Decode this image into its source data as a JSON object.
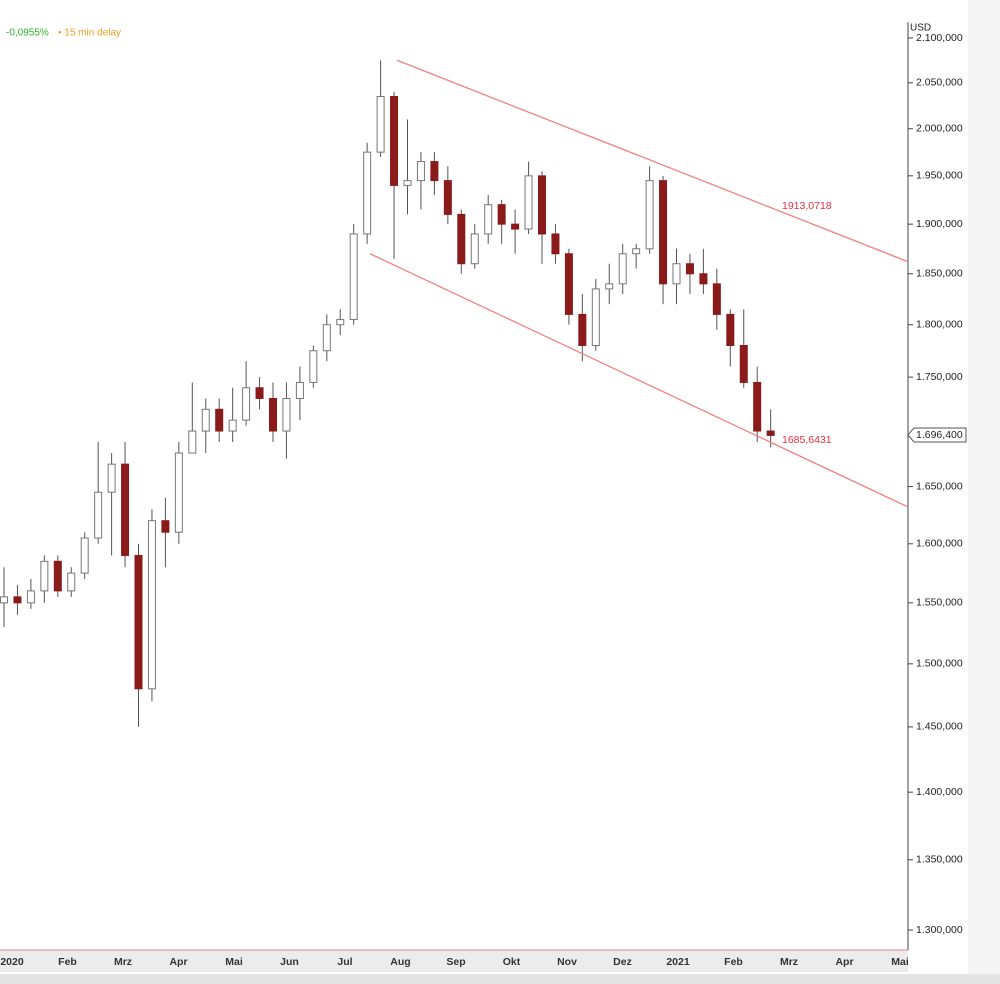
{
  "chart_data": {
    "type": "candlestick",
    "status": "-0,0955%",
    "delay": "• 15 min delay",
    "y_axis_label": "USD",
    "log": true,
    "up_color": "#ffffff",
    "down_color": "#8b1a1a",
    "trend_color": "#f08080",
    "ylim": [
      1300,
      2100
    ],
    "yticks": [
      {
        "value": 2100,
        "label": "2.100,000"
      },
      {
        "value": 2050,
        "label": "2.050,000"
      },
      {
        "value": 2000,
        "label": "2.000,000"
      },
      {
        "value": 1950,
        "label": "1.950,000"
      },
      {
        "value": 1900,
        "label": "1.900,000"
      },
      {
        "value": 1850,
        "label": "1.850,000"
      },
      {
        "value": 1800,
        "label": "1.800,000"
      },
      {
        "value": 1750,
        "label": "1.750,000"
      },
      {
        "value": 1650,
        "label": "1.650,000"
      },
      {
        "value": 1600,
        "label": "1.600,000"
      },
      {
        "value": 1550,
        "label": "1.550,000"
      },
      {
        "value": 1500,
        "label": "1.500,000"
      },
      {
        "value": 1450,
        "label": "1.450,000"
      },
      {
        "value": 1400,
        "label": "1.400,000"
      },
      {
        "value": 1350,
        "label": "1.350,000"
      },
      {
        "value": 1300,
        "label": "1.300,000"
      }
    ],
    "x_labels": [
      "2020",
      "Feb",
      "Mrz",
      "Apr",
      "Mai",
      "Jun",
      "Jul",
      "Aug",
      "Sep",
      "Okt",
      "Nov",
      "Dez",
      "2021",
      "Feb",
      "Mrz",
      "Apr",
      "Mai"
    ],
    "candles": [
      [
        1550,
        1580,
        1530,
        1555
      ],
      [
        1555,
        1565,
        1540,
        1550
      ],
      [
        1550,
        1570,
        1545,
        1560
      ],
      [
        1560,
        1590,
        1550,
        1585
      ],
      [
        1585,
        1590,
        1555,
        1560
      ],
      [
        1560,
        1580,
        1555,
        1575
      ],
      [
        1575,
        1610,
        1570,
        1605
      ],
      [
        1605,
        1690,
        1600,
        1645
      ],
      [
        1645,
        1680,
        1590,
        1670
      ],
      [
        1670,
        1690,
        1580,
        1590
      ],
      [
        1590,
        1600,
        1450,
        1480
      ],
      [
        1480,
        1630,
        1470,
        1620
      ],
      [
        1620,
        1640,
        1580,
        1610
      ],
      [
        1610,
        1690,
        1600,
        1680
      ],
      [
        1680,
        1745,
        1680,
        1700
      ],
      [
        1700,
        1730,
        1680,
        1720
      ],
      [
        1720,
        1730,
        1690,
        1700
      ],
      [
        1700,
        1740,
        1690,
        1710
      ],
      [
        1710,
        1765,
        1705,
        1740
      ],
      [
        1740,
        1750,
        1720,
        1730
      ],
      [
        1730,
        1745,
        1690,
        1700
      ],
      [
        1700,
        1745,
        1675,
        1730
      ],
      [
        1730,
        1760,
        1710,
        1745
      ],
      [
        1745,
        1780,
        1740,
        1775
      ],
      [
        1775,
        1810,
        1765,
        1800
      ],
      [
        1800,
        1815,
        1790,
        1805
      ],
      [
        1805,
        1900,
        1800,
        1890
      ],
      [
        1890,
        1985,
        1880,
        1975
      ],
      [
        1975,
        2075,
        1970,
        2035
      ],
      [
        2035,
        2040,
        1865,
        1940
      ],
      [
        1940,
        2010,
        1910,
        1945
      ],
      [
        1945,
        1975,
        1915,
        1965
      ],
      [
        1965,
        1975,
        1930,
        1945
      ],
      [
        1945,
        1960,
        1900,
        1910
      ],
      [
        1910,
        1915,
        1850,
        1860
      ],
      [
        1860,
        1900,
        1855,
        1890
      ],
      [
        1890,
        1930,
        1880,
        1920
      ],
      [
        1920,
        1925,
        1880,
        1900
      ],
      [
        1900,
        1915,
        1870,
        1895
      ],
      [
        1895,
        1965,
        1890,
        1950
      ],
      [
        1950,
        1955,
        1860,
        1890
      ],
      [
        1890,
        1900,
        1860,
        1870
      ],
      [
        1870,
        1875,
        1800,
        1810
      ],
      [
        1810,
        1830,
        1765,
        1780
      ],
      [
        1780,
        1845,
        1775,
        1835
      ],
      [
        1835,
        1860,
        1820,
        1840
      ],
      [
        1840,
        1880,
        1830,
        1870
      ],
      [
        1870,
        1880,
        1855,
        1875
      ],
      [
        1875,
        1960,
        1870,
        1945
      ],
      [
        1945,
        1950,
        1820,
        1840
      ],
      [
        1840,
        1875,
        1820,
        1860
      ],
      [
        1860,
        1870,
        1830,
        1850
      ],
      [
        1850,
        1875,
        1830,
        1840
      ],
      [
        1840,
        1855,
        1795,
        1810
      ],
      [
        1810,
        1815,
        1760,
        1780
      ],
      [
        1780,
        1815,
        1740,
        1745
      ],
      [
        1745,
        1760,
        1690,
        1700
      ],
      [
        1700,
        1720,
        1685,
        1696
      ]
    ],
    "trendlines": [
      {
        "values": [
          2075,
          1862
        ],
        "label": "1913,0718"
      },
      {
        "values": [
          1870,
          1632
        ],
        "label": "1685,6431"
      }
    ],
    "current_price": {
      "value": 1696.4,
      "label": "1.696,400"
    }
  }
}
